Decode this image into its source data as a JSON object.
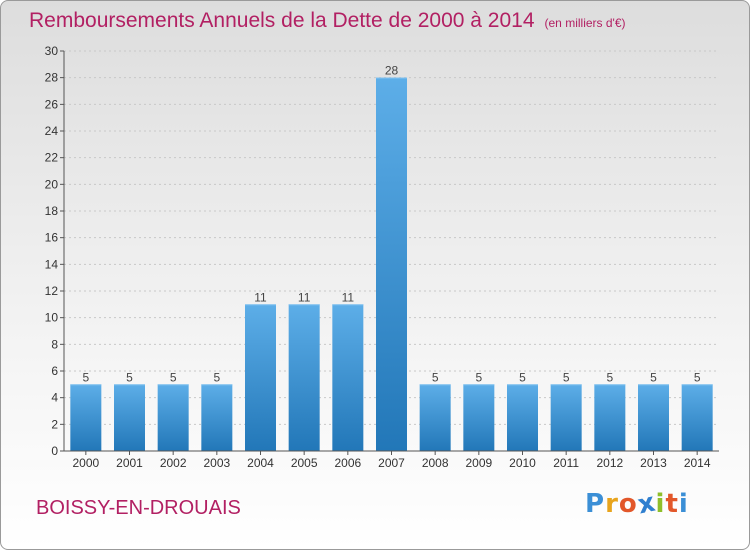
{
  "title": "Remboursements Annuels de la Dette de 2000 à 2014",
  "unit_note": "(en milliers d'€)",
  "commune": "BOISSY-EN-DROUAIS",
  "logo": {
    "letters": [
      "P",
      "r",
      "o",
      "x",
      "i",
      "t",
      "i"
    ],
    "colors": [
      "#3b8fd6",
      "#e8a41c",
      "#e2572a",
      "#2f7fcf",
      "#8fbf2a",
      "#e2572a",
      "#3b8fd6"
    ]
  },
  "colors": {
    "title": "#b22063",
    "bar_light": "#5daee8",
    "bar_dark": "#2277b8",
    "grid": "#c8c8c8"
  },
  "chart_data": {
    "type": "bar",
    "categories": [
      "2000",
      "2001",
      "2002",
      "2003",
      "2004",
      "2005",
      "2006",
      "2007",
      "2008",
      "2009",
      "2010",
      "2011",
      "2012",
      "2013",
      "2014"
    ],
    "values": [
      5,
      5,
      5,
      5,
      11,
      11,
      11,
      28,
      5,
      5,
      5,
      5,
      5,
      5,
      5
    ],
    "data_labels": [
      "5",
      "5",
      "5",
      "5",
      "11",
      "11",
      "11",
      "28",
      "5",
      "5",
      "5",
      "5",
      "5",
      "5",
      "5"
    ],
    "yticks": [
      "0",
      "2",
      "4",
      "6",
      "8",
      "10",
      "12",
      "14",
      "16",
      "18",
      "20",
      "22",
      "24",
      "26",
      "28",
      "30"
    ],
    "ylim": [
      0,
      30
    ],
    "grid": true,
    "legend": "none"
  }
}
